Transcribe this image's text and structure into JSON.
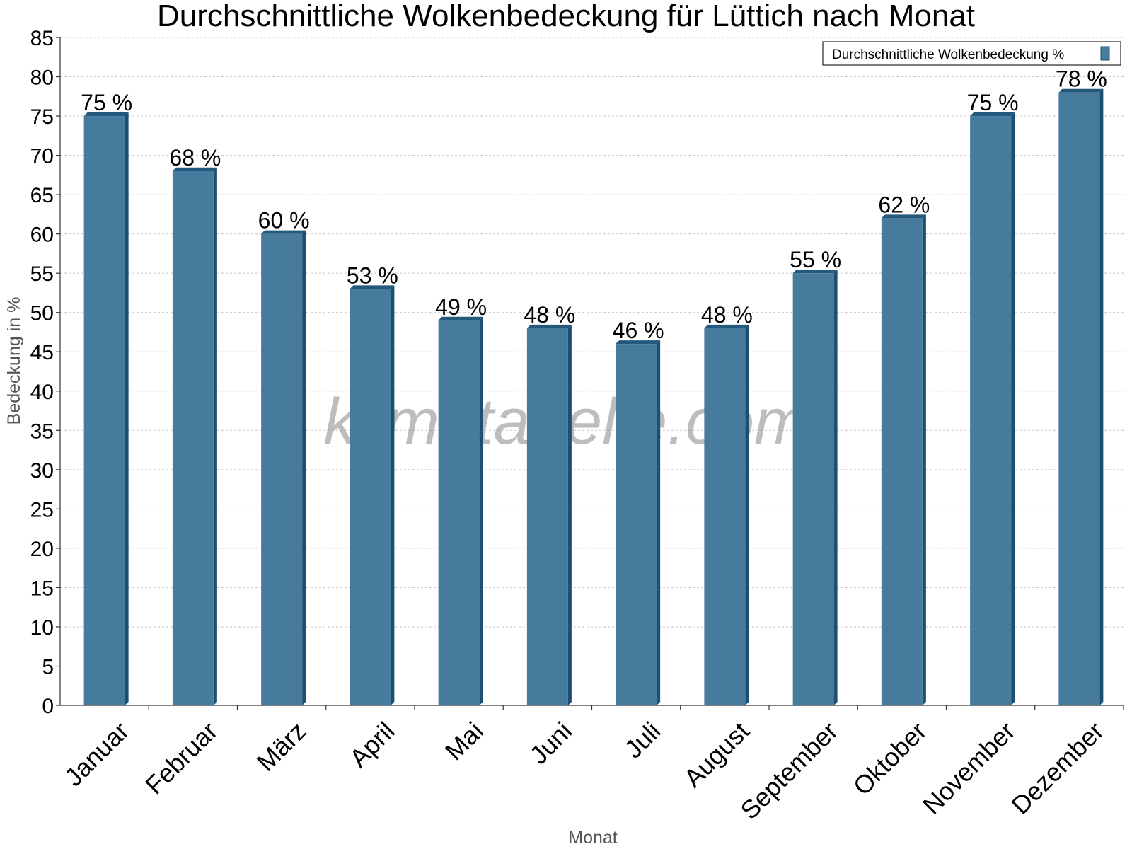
{
  "chart_data": {
    "type": "bar",
    "title": "Durchschnittliche Wolkenbedeckung für Lüttich nach Monat",
    "xlabel": "Monat",
    "ylabel": "Bedeckung in %",
    "categories": [
      "Januar",
      "Februar",
      "März",
      "April",
      "Mai",
      "Juni",
      "Juli",
      "August",
      "September",
      "Oktober",
      "November",
      "Dezember"
    ],
    "series": [
      {
        "name": "Durchschnittliche Wolkenbedeckung %",
        "values": [
          75,
          68,
          60,
          53,
          49,
          48,
          46,
          48,
          55,
          62,
          75,
          78
        ],
        "labels": [
          "75 %",
          "68 %",
          "60 %",
          "53 %",
          "49 %",
          "48 %",
          "46 %",
          "48 %",
          "55 %",
          "62 %",
          "75 %",
          "78 %"
        ],
        "color": "#467b9d"
      }
    ],
    "ylim": [
      0,
      85
    ],
    "yticks": [
      0,
      5,
      10,
      15,
      20,
      25,
      30,
      35,
      40,
      45,
      50,
      55,
      60,
      65,
      70,
      75,
      80,
      85
    ],
    "grid": true,
    "legend_position": "top-right",
    "watermark": "klimatabelle.com",
    "colors": {
      "bar": "#467b9d",
      "bar_side": "#1c4f72",
      "bar_top": "#24597d"
    }
  }
}
